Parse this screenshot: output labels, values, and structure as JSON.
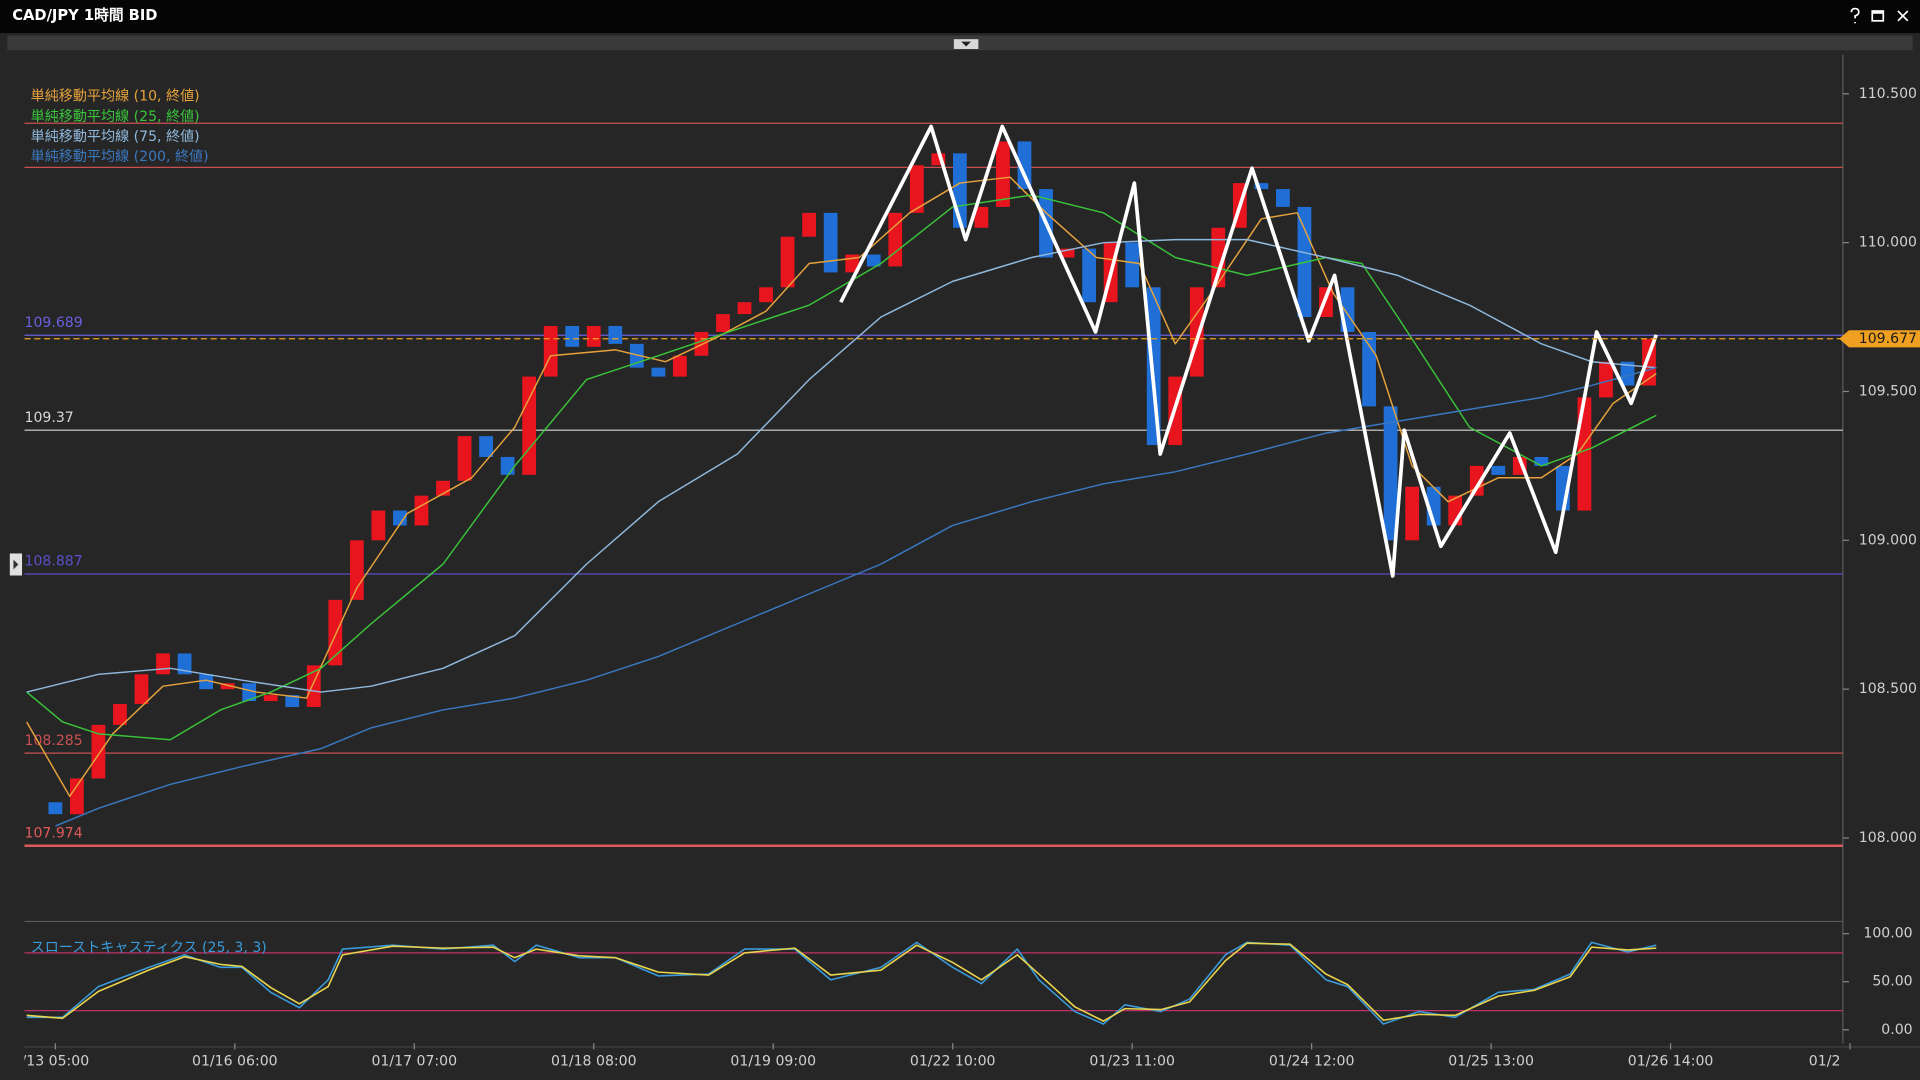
{
  "chart_data": {
    "type": "candlestick",
    "title": "CAD/JPY 1時間 BID",
    "up_color": "#e8151f",
    "down_color": "#1f6fd6",
    "grid": false,
    "xlim": [
      -4.3,
      249
    ],
    "ylim": [
      107.73,
      110.63
    ],
    "xticks": [
      {
        "value": 0,
        "label": "/13 05:00"
      },
      {
        "value": 25,
        "label": "01/16 06:00"
      },
      {
        "value": 50,
        "label": "01/17 07:00"
      },
      {
        "value": 75,
        "label": "01/18 08:00"
      },
      {
        "value": 100,
        "label": "01/19 09:00"
      },
      {
        "value": 125,
        "label": "01/22 10:00"
      },
      {
        "value": 150,
        "label": "01/23 11:00"
      },
      {
        "value": 175,
        "label": "01/24 12:00"
      },
      {
        "value": 200,
        "label": "01/25 13:00"
      },
      {
        "value": 225,
        "label": "01/26 14:00"
      },
      {
        "value": 250,
        "label": "01/2"
      }
    ],
    "yticks": [
      {
        "value": 108,
        "label": "108.000"
      },
      {
        "value": 108.5,
        "label": "108.500"
      },
      {
        "value": 109,
        "label": "109.000"
      },
      {
        "value": 109.5,
        "label": "109.500"
      },
      {
        "value": 110,
        "label": "110.000"
      },
      {
        "value": 110.5,
        "label": "110.500"
      }
    ],
    "x": [
      0,
      3,
      6,
      9,
      12,
      15,
      18,
      21,
      24,
      27,
      30,
      33,
      36,
      39,
      42,
      45,
      48,
      51,
      54,
      57,
      60,
      63,
      66,
      69,
      72,
      75,
      78,
      81,
      84,
      87,
      90,
      93,
      96,
      99,
      102,
      105,
      108,
      111,
      114,
      117,
      120,
      123,
      126,
      129,
      132,
      135,
      138,
      141,
      144,
      147,
      150,
      153,
      156,
      159,
      162,
      165,
      168,
      171,
      174,
      177,
      180,
      183,
      186,
      189,
      192,
      195,
      198,
      201,
      204,
      207,
      210,
      213,
      216,
      219,
      222
    ],
    "open": [
      108.12,
      108.08,
      108.2,
      108.38,
      108.45,
      108.55,
      108.62,
      108.55,
      108.5,
      108.52,
      108.46,
      108.48,
      108.44,
      108.58,
      108.8,
      109.0,
      109.1,
      109.05,
      109.15,
      109.2,
      109.35,
      109.28,
      109.22,
      109.55,
      109.72,
      109.65,
      109.72,
      109.66,
      109.58,
      109.55,
      109.62,
      109.7,
      109.76,
      109.8,
      109.85,
      110.02,
      110.1,
      109.9,
      109.96,
      109.92,
      110.1,
      110.26,
      110.3,
      110.05,
      110.12,
      110.34,
      110.18,
      109.95,
      109.98,
      109.8,
      110.0,
      109.85,
      109.32,
      109.55,
      109.85,
      110.05,
      110.2,
      110.18,
      110.12,
      109.75,
      109.85,
      109.7,
      109.45,
      109.0,
      109.18,
      109.05,
      109.15,
      109.25,
      109.22,
      109.28,
      109.25,
      109.1,
      109.48,
      109.6,
      109.52
    ],
    "close": [
      108.08,
      108.2,
      108.38,
      108.45,
      108.55,
      108.62,
      108.55,
      108.5,
      108.52,
      108.46,
      108.48,
      108.44,
      108.58,
      108.8,
      109.0,
      109.1,
      109.05,
      109.15,
      109.2,
      109.35,
      109.28,
      109.22,
      109.55,
      109.72,
      109.65,
      109.72,
      109.66,
      109.58,
      109.55,
      109.62,
      109.7,
      109.76,
      109.8,
      109.85,
      110.02,
      110.1,
      109.9,
      109.96,
      109.92,
      110.1,
      110.26,
      110.3,
      110.05,
      110.12,
      110.34,
      110.18,
      109.95,
      109.98,
      109.8,
      110.0,
      109.85,
      109.32,
      109.55,
      109.85,
      110.05,
      110.2,
      110.18,
      110.12,
      109.75,
      109.85,
      109.7,
      109.45,
      109.0,
      109.18,
      109.05,
      109.15,
      109.25,
      109.22,
      109.28,
      109.25,
      109.1,
      109.48,
      109.6,
      109.52,
      109.677
    ],
    "series": [
      {
        "name": "単純移動平均線 (10, 終値)",
        "color": "#e6a23c",
        "x": [
          -4,
          2,
          8,
          15,
          21,
          28,
          35,
          42,
          49,
          58,
          64,
          69,
          78,
          85,
          92,
          99,
          105,
          112,
          119,
          126,
          133,
          138,
          145,
          151,
          156,
          161,
          168,
          173,
          178,
          184,
          189,
          194,
          201,
          207,
          212,
          217,
          223
        ],
        "values": [
          108.39,
          108.14,
          108.35,
          108.51,
          108.53,
          108.49,
          108.47,
          108.84,
          109.09,
          109.21,
          109.38,
          109.62,
          109.64,
          109.6,
          109.68,
          109.77,
          109.93,
          109.95,
          110.1,
          110.2,
          110.22,
          110.1,
          109.95,
          109.93,
          109.66,
          109.83,
          110.08,
          110.1,
          109.83,
          109.62,
          109.25,
          109.13,
          109.21,
          109.21,
          109.29,
          109.46,
          109.56
        ]
      },
      {
        "name": "単純移動平均線 (25, 終値)",
        "color": "#3ac43a",
        "x": [
          -4,
          1,
          6,
          16,
          23,
          30,
          37,
          44,
          54,
          64,
          74,
          84,
          95,
          105,
          115,
          125,
          136,
          146,
          156,
          166,
          177,
          182,
          187,
          197,
          207,
          214,
          223
        ],
        "values": [
          108.49,
          108.39,
          108.35,
          108.33,
          108.43,
          108.49,
          108.57,
          108.72,
          108.92,
          109.25,
          109.54,
          109.62,
          109.71,
          109.79,
          109.93,
          110.12,
          110.16,
          110.1,
          109.95,
          109.89,
          109.95,
          109.93,
          109.75,
          109.38,
          109.25,
          109.31,
          109.42
        ]
      },
      {
        "name": "単純移動平均線 (75, 終値)",
        "color": "#8fb8dc",
        "x": [
          -4,
          6,
          16,
          26,
          37,
          44,
          54,
          64,
          74,
          84,
          95,
          105,
          115,
          125,
          136,
          146,
          156,
          166,
          177,
          187,
          197,
          207,
          214,
          223
        ],
        "values": [
          108.49,
          108.55,
          108.57,
          108.53,
          108.49,
          108.51,
          108.57,
          108.68,
          108.92,
          109.13,
          109.29,
          109.54,
          109.75,
          109.87,
          109.95,
          110.0,
          110.01,
          110.01,
          109.95,
          109.89,
          109.79,
          109.66,
          109.6,
          109.58
        ]
      },
      {
        "name": "単純移動平均線 (200, 終値)",
        "color": "#3a78c0",
        "x": [
          0,
          6,
          16,
          26,
          37,
          44,
          54,
          64,
          74,
          84,
          95,
          105,
          115,
          125,
          136,
          146,
          156,
          166,
          177,
          187,
          197,
          207,
          214,
          223
        ],
        "values": [
          108.04,
          108.1,
          108.18,
          108.24,
          108.3,
          108.37,
          108.43,
          108.47,
          108.53,
          108.61,
          108.72,
          108.82,
          108.92,
          109.05,
          109.13,
          109.19,
          109.23,
          109.29,
          109.36,
          109.4,
          109.44,
          109.48,
          109.52,
          109.58
        ]
      }
    ],
    "hlines": [
      {
        "value": 110.401,
        "color": "#c85050"
      },
      {
        "value": 110.253,
        "color": "#c85050"
      },
      {
        "value": 109.689,
        "color": "#6a60e0"
      },
      {
        "value": 109.37,
        "color": "#d8d8d8"
      },
      {
        "value": 108.887,
        "color": "#5a50c8"
      },
      {
        "value": 108.285,
        "color": "#c85050"
      },
      {
        "value": 107.974,
        "color": "#e05a5a"
      }
    ],
    "labeled_hlines": [
      2,
      3,
      4,
      5,
      6
    ],
    "last_price": {
      "value": 109.677,
      "color": "#f0a020"
    },
    "zigzag": {
      "color": "#ffffff",
      "x": [
        109.4,
        122.0,
        126.8,
        131.9,
        144.9,
        150.3,
        153.9,
        166.7,
        174.6,
        178.2,
        186.3,
        187.9,
        193.0,
        202.6,
        209.0,
        214.7,
        219.5,
        223.0
      ],
      "values": [
        109.8,
        110.39,
        110.01,
        110.39,
        109.7,
        110.2,
        109.29,
        110.25,
        109.67,
        109.89,
        108.88,
        109.37,
        108.98,
        109.36,
        108.96,
        109.7,
        109.46,
        109.69
      ]
    },
    "indicator": {
      "type": "line",
      "name": "スローストキャスティクス (25, 3, 3)",
      "name_color": "#3a9ad9",
      "ylim": [
        -14,
        107
      ],
      "yticks": [
        {
          "value": 0,
          "label": "0.00"
        },
        {
          "value": 50,
          "label": "50.00"
        },
        {
          "value": 100,
          "label": "100.00"
        }
      ],
      "levels": [
        20,
        80
      ],
      "level_color": "#c0306a",
      "series": [
        {
          "color": "#3a9ad9",
          "x": [
            -4,
            1,
            6,
            13,
            18,
            23,
            26,
            30,
            34,
            38,
            40,
            47,
            54,
            61,
            64,
            67,
            73,
            78,
            84,
            91,
            96,
            103,
            108,
            115,
            120,
            125,
            129,
            134,
            137,
            142,
            146,
            149,
            154,
            158,
            163,
            166,
            172,
            177,
            180,
            185,
            190,
            195,
            201,
            206,
            211,
            214,
            219,
            223
          ],
          "values": [
            13,
            13,
            45,
            65,
            78,
            65,
            65,
            39,
            23,
            52,
            84,
            88,
            84,
            88,
            71,
            88,
            75,
            75,
            56,
            58,
            84,
            84,
            52,
            65,
            91,
            65,
            48,
            84,
            52,
            19,
            6,
            26,
            19,
            32,
            78,
            91,
            88,
            52,
            45,
            6,
            19,
            13,
            39,
            42,
            58,
            91,
            81,
            88
          ]
        },
        {
          "color": "#e8d44d",
          "x": [
            -4,
            1,
            6,
            13,
            18,
            23,
            26,
            30,
            34,
            38,
            40,
            47,
            54,
            61,
            64,
            67,
            73,
            78,
            84,
            91,
            96,
            103,
            108,
            115,
            120,
            125,
            129,
            134,
            137,
            142,
            146,
            149,
            154,
            158,
            163,
            166,
            172,
            177,
            180,
            185,
            190,
            195,
            201,
            206,
            211,
            214,
            219,
            223
          ],
          "values": [
            15,
            12,
            40,
            62,
            76,
            68,
            66,
            44,
            27,
            45,
            78,
            87,
            85,
            86,
            75,
            84,
            77,
            75,
            60,
            57,
            80,
            85,
            57,
            62,
            88,
            70,
            52,
            78,
            58,
            24,
            9,
            22,
            21,
            29,
            72,
            90,
            89,
            58,
            47,
            10,
            16,
            15,
            35,
            41,
            55,
            86,
            83,
            85
          ]
        }
      ]
    }
  }
}
